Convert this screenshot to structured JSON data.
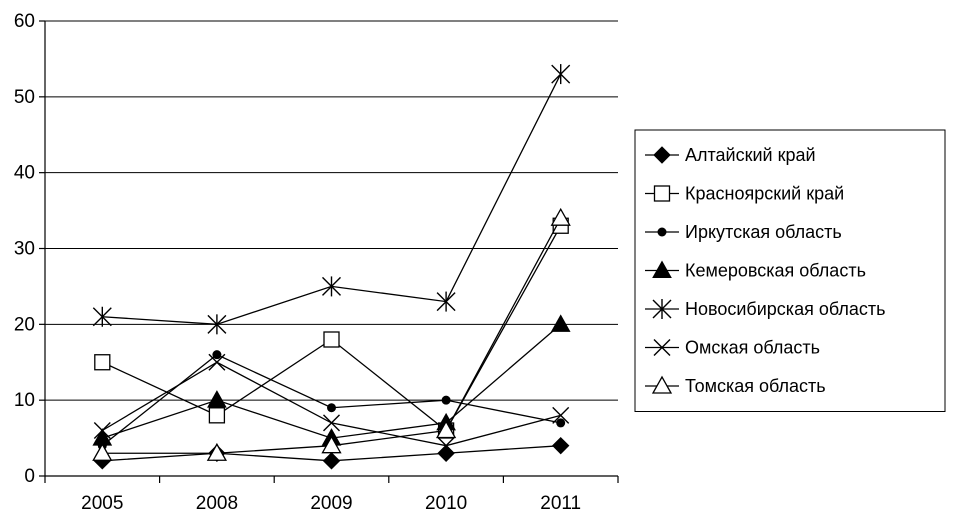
{
  "chart_data": {
    "type": "line",
    "title": "",
    "xlabel": "",
    "ylabel": "",
    "categories": [
      "2005",
      "2008",
      "2009",
      "2010",
      "2011"
    ],
    "ylim": [
      0,
      60
    ],
    "yticks": [
      "0",
      "10",
      "20",
      "30",
      "40",
      "50",
      "60"
    ],
    "grid": "horizontal",
    "legend_position": "right",
    "series": [
      {
        "name": "Алтайский край",
        "marker": "diamond-filled",
        "values": [
          2,
          3,
          2,
          3,
          4
        ]
      },
      {
        "name": "Красноярский край",
        "marker": "square-open",
        "values": [
          15,
          8,
          18,
          6,
          33
        ]
      },
      {
        "name": "Иркутская область",
        "marker": "circle-filled",
        "values": [
          4,
          16,
          9,
          10,
          7
        ]
      },
      {
        "name": "Кемеровская область",
        "marker": "triangle-filled",
        "values": [
          5,
          10,
          5,
          7,
          20
        ]
      },
      {
        "name": "Новосибирская область",
        "marker": "star",
        "values": [
          21,
          20,
          25,
          23,
          53
        ]
      },
      {
        "name": "Омская область",
        "marker": "x",
        "values": [
          6,
          15,
          7,
          4,
          8
        ]
      },
      {
        "name": "Томская область",
        "marker": "triangle-open",
        "values": [
          3,
          3,
          4,
          6,
          34
        ]
      }
    ]
  }
}
